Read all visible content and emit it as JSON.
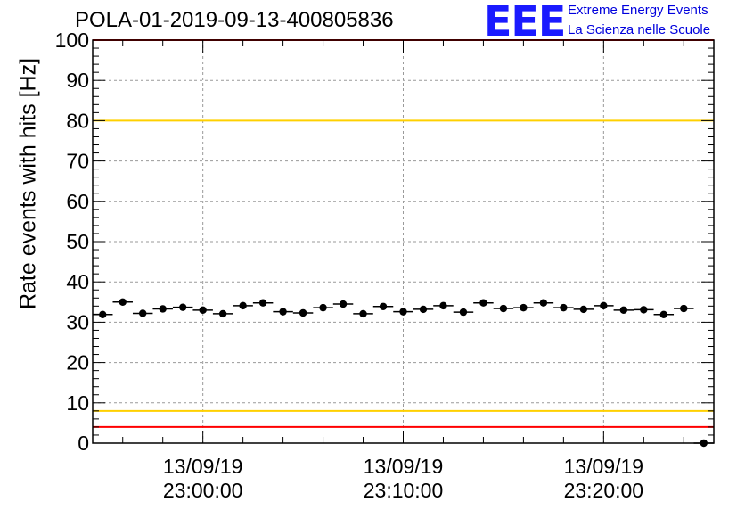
{
  "chart_title": "POLA-01-2019-09-13-400805836",
  "logo": {
    "text": "EEE",
    "line1": "Extreme Energy Events",
    "line2": "La Scienza nelle Scuole"
  },
  "colors": {
    "red_line": "#ff0000",
    "yellow_line": "#ffd000",
    "grid": "#9a9a9a",
    "logo_blue": "#1a1aff"
  },
  "chart_data": {
    "type": "scatter",
    "title": "POLA-01-2019-09-13-400805836",
    "ylabel": "Rate events with hits [Hz]",
    "xlabel": "",
    "ylim": [
      0,
      100
    ],
    "yticks": [
      0,
      10,
      20,
      30,
      40,
      50,
      60,
      70,
      80,
      90,
      100
    ],
    "xlim_minutes": [
      -5.5,
      25.5
    ],
    "xticks": [
      {
        "minute": 0,
        "date": "13/09/19",
        "time": "23:00:00"
      },
      {
        "minute": 10,
        "date": "13/09/19",
        "time": "23:10:00"
      },
      {
        "minute": 20,
        "date": "13/09/19",
        "time": "23:20:00"
      }
    ],
    "reference_lines": [
      {
        "y": 100,
        "color": "red"
      },
      {
        "y": 80,
        "color": "yellow"
      },
      {
        "y": 8,
        "color": "yellow"
      },
      {
        "y": 4,
        "color": "red"
      }
    ],
    "grid": true,
    "series": [
      {
        "x_minutes": [
          -5,
          -4,
          -3,
          -2,
          -1,
          0,
          1,
          2,
          3,
          4,
          5,
          6,
          7,
          8,
          9,
          10,
          11,
          12,
          13,
          14,
          15,
          16,
          17,
          18,
          19,
          20,
          21,
          22,
          23,
          24,
          25
        ],
        "values": [
          31.9,
          35.0,
          32.2,
          33.3,
          33.7,
          33.0,
          32.1,
          34.1,
          34.8,
          32.6,
          32.3,
          33.6,
          34.5,
          32.1,
          33.9,
          32.6,
          33.2,
          34.1,
          32.5,
          34.8,
          33.4,
          33.6,
          34.8,
          33.6,
          33.2,
          34.1,
          33.0,
          33.1,
          31.9,
          33.4,
          0
        ]
      }
    ]
  }
}
